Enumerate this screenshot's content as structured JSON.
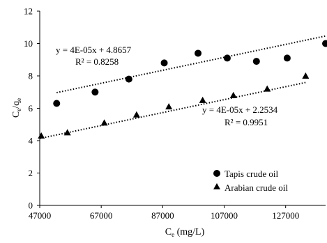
{
  "chart_data": {
    "type": "scatter",
    "title": "",
    "xlabel": "Ce (mg/L)",
    "xlabel_main": "C",
    "xlabel_sub": "e",
    "xlabel_rest": " (mg/L)",
    "ylabel": "Ce/qe",
    "ylabel_parts": [
      "C",
      "e",
      "/q",
      "e"
    ],
    "xlim": [
      47000,
      140000
    ],
    "ylim": [
      0,
      12
    ],
    "xticks": [
      47000,
      67000,
      87000,
      107000,
      127000
    ],
    "yticks": [
      0,
      2,
      4,
      6,
      8,
      10,
      12
    ],
    "grid": false,
    "legend_position": "bottom-right",
    "series": [
      {
        "name": "Tapis crude oil",
        "marker": "circle",
        "x": [
          52500,
          65000,
          76000,
          87500,
          98500,
          108000,
          117500,
          127500,
          140000
        ],
        "y": [
          6.3,
          7.0,
          7.8,
          8.8,
          9.4,
          9.1,
          8.9,
          9.1,
          10.0
        ],
        "trendline": {
          "x_range": [
            52500,
            140000
          ],
          "slope": 4e-05,
          "intercept": 4.8657,
          "equation": "y = 4E-05x + 4.8657",
          "r2": "R² = 0.8258"
        }
      },
      {
        "name": "Arabian crude oil",
        "marker": "triangle",
        "x": [
          47500,
          56000,
          68000,
          78500,
          89000,
          100000,
          110000,
          121000,
          133500
        ],
        "y": [
          4.3,
          4.5,
          5.1,
          5.6,
          6.1,
          6.5,
          6.8,
          7.2,
          8.0
        ],
        "trendline": {
          "x_range": [
            47000,
            133500
          ],
          "slope": 4e-05,
          "intercept": 2.2534,
          "equation": "y = 4E-05x + 2.2534",
          "r2": "R² = 0.9951"
        }
      }
    ]
  }
}
